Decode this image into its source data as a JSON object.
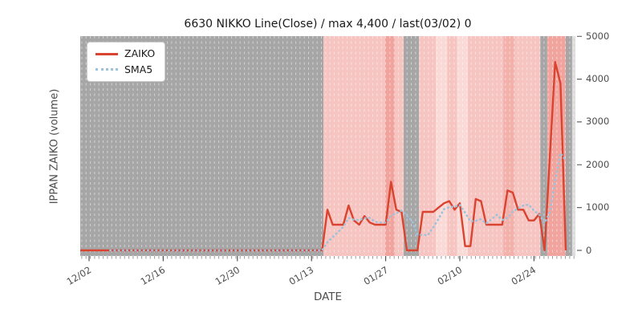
{
  "chart_data": {
    "type": "line",
    "title": "6630 NIKKO Line(Close) / max 4,400 / last(03/02) 0",
    "xlabel": "DATE",
    "ylabel": "IPPAN ZAIKO (volume)",
    "legend_position": "upper left",
    "grid": "vertical dashed daily lines",
    "max_value": 4400,
    "last_date": "03/02",
    "last_value": 0,
    "y_ticks": [
      0,
      1000,
      2000,
      3000,
      4000,
      5000
    ],
    "ylim": [
      -130,
      5005
    ],
    "x_tick_labels": [
      "12/02",
      "12/16",
      "12/30",
      "01/13",
      "01/27",
      "02/10",
      "02/24"
    ],
    "x_tick_days": [
      0,
      14,
      28,
      42,
      56,
      70,
      84
    ],
    "dates": [
      "12/02",
      "12/03",
      "12/04",
      "12/05",
      "12/06",
      "12/07",
      "12/08",
      "12/09",
      "12/10",
      "12/11",
      "12/12",
      "12/13",
      "12/14",
      "12/15",
      "12/16",
      "12/17",
      "12/18",
      "12/19",
      "12/20",
      "12/21",
      "12/22",
      "12/23",
      "12/24",
      "12/25",
      "12/26",
      "12/27",
      "12/28",
      "12/29",
      "12/30",
      "12/31",
      "01/01",
      "01/02",
      "01/03",
      "01/04",
      "01/05",
      "01/06",
      "01/07",
      "01/08",
      "01/09",
      "01/10",
      "01/11",
      "01/12",
      "01/13",
      "01/14",
      "01/15",
      "01/16",
      "01/17",
      "01/18",
      "01/19",
      "01/20",
      "01/21",
      "01/22",
      "01/23",
      "01/24",
      "01/25",
      "01/26",
      "01/27",
      "01/28",
      "01/29",
      "01/30",
      "01/31",
      "02/01",
      "02/02",
      "02/03",
      "02/04",
      "02/05",
      "02/06",
      "02/07",
      "02/08",
      "02/09",
      "02/10",
      "02/11",
      "02/12",
      "02/13",
      "02/14",
      "02/15",
      "02/16",
      "02/17",
      "02/18",
      "02/19",
      "02/20",
      "02/21",
      "02/22",
      "02/23",
      "02/24",
      "02/25",
      "02/26",
      "02/27",
      "02/28",
      "03/01",
      "03/02"
    ],
    "series": [
      {
        "name": "ZAIKO",
        "color": "#d9432f",
        "style": "solid",
        "values": [
          0,
          0,
          0,
          0,
          0,
          0,
          0,
          0,
          0,
          0,
          0,
          0,
          0,
          0,
          0,
          0,
          0,
          0,
          0,
          0,
          0,
          0,
          0,
          0,
          0,
          0,
          0,
          0,
          0,
          0,
          0,
          0,
          0,
          0,
          0,
          0,
          0,
          0,
          0,
          0,
          0,
          0,
          0,
          0,
          0,
          950,
          600,
          600,
          600,
          1050,
          700,
          600,
          800,
          650,
          600,
          600,
          600,
          1600,
          950,
          900,
          0,
          0,
          0,
          900,
          900,
          900,
          1000,
          1100,
          1150,
          950,
          1100,
          100,
          100,
          1200,
          1150,
          600,
          600,
          600,
          600,
          1400,
          1350,
          950,
          950,
          700,
          700,
          850,
          0,
          2200,
          4400,
          3900,
          0
        ]
      },
      {
        "name": "SMA5",
        "color": "#9cc2dc",
        "style": "dotted",
        "derived": "5-day moving average of ZAIKO",
        "values": [
          null,
          null,
          null,
          null,
          0,
          0,
          0,
          0,
          0,
          0,
          0,
          0,
          0,
          0,
          0,
          0,
          0,
          0,
          0,
          0,
          0,
          0,
          0,
          0,
          0,
          0,
          0,
          0,
          0,
          0,
          0,
          0,
          0,
          0,
          0,
          0,
          0,
          0,
          0,
          0,
          0,
          0,
          0,
          0,
          0,
          190,
          310,
          430,
          550,
          760,
          710,
          710,
          750,
          760,
          670,
          650,
          650,
          810,
          870,
          930,
          810,
          690,
          370,
          360,
          360,
          540,
          740,
          960,
          1010,
          1020,
          1060,
          880,
          680,
          690,
          730,
          630,
          730,
          830,
          710,
          760,
          910,
          980,
          1050,
          1070,
          930,
          830,
          640,
          890,
          1630,
          2270,
          2100
        ]
      }
    ],
    "background_bands": [
      {
        "from_day": -1.7,
        "to_day": 44.25,
        "color": "gray"
      },
      {
        "from_day": 44.25,
        "to_day": 55.9,
        "color": "pink"
      },
      {
        "from_day": 55.9,
        "to_day": 57.7,
        "color": "deeppink"
      },
      {
        "from_day": 57.7,
        "to_day": 59.4,
        "color": "pink"
      },
      {
        "from_day": 59.4,
        "to_day": 62.3,
        "color": "gray"
      },
      {
        "from_day": 62.3,
        "to_day": 65.5,
        "color": "pink"
      },
      {
        "from_day": 65.5,
        "to_day": 67.6,
        "color": "lightpink"
      },
      {
        "from_day": 67.6,
        "to_day": 69.5,
        "color": "pink"
      },
      {
        "from_day": 69.5,
        "to_day": 71.5,
        "color": "lightpink"
      },
      {
        "from_day": 71.5,
        "to_day": 78.2,
        "color": "pink"
      },
      {
        "from_day": 78.2,
        "to_day": 80.3,
        "color": "deeppink2"
      },
      {
        "from_day": 80.3,
        "to_day": 85.2,
        "color": "pink"
      },
      {
        "from_day": 85.2,
        "to_day": 86.5,
        "color": "gray"
      },
      {
        "from_day": 86.5,
        "to_day": 90.0,
        "color": "deeppink"
      },
      {
        "from_day": 90.0,
        "to_day": 91.2,
        "color": "gray"
      },
      {
        "from_day": 91.2,
        "to_day": 92.0,
        "color": "lightgray"
      }
    ],
    "band_colors": {
      "gray": "#a6a6a6",
      "pink": "#f6c5c1",
      "lightpink": "#fadad7",
      "deeppink": "#f0a49d",
      "deeppink2": "#f3b1ab",
      "lightgray": "#dcdcdc"
    }
  },
  "legend": {
    "items": [
      "ZAIKO",
      "SMA5"
    ]
  }
}
